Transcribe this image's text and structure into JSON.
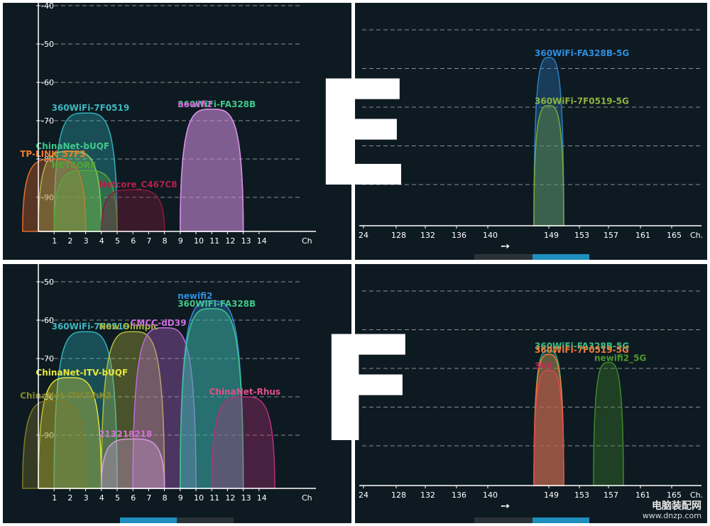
{
  "letters": {
    "top": "E",
    "bottom": "F"
  },
  "watermark": {
    "line1": "电脑装配网",
    "line2": "www.dnzp.com"
  },
  "colors": {
    "bg": "#0e1a21",
    "axis": "#ffffff",
    "grid": "#8a8f92",
    "text": "#ffffff"
  },
  "chart_data": [
    {
      "id": "E-2.4G",
      "type": "area",
      "x_unit_label": "Ch",
      "x_ticks": [
        "1",
        "2",
        "3",
        "4",
        "5",
        "6",
        "7",
        "8",
        "9",
        "10",
        "11",
        "12",
        "13",
        "14"
      ],
      "y_ticks": [
        "-40",
        "-50",
        "-60",
        "-70",
        "-80",
        "-90"
      ],
      "ylim": [
        -100,
        -40
      ],
      "grid": true,
      "series": [
        {
          "name": "360WiFi-7F0519",
          "center": 3,
          "value": -68,
          "color": "#2fb3bd",
          "label_color": "#3fb7c0"
        },
        {
          "name": "ChinaNet-bUQF",
          "center": 2,
          "value": -78,
          "color": "#8fd06b",
          "label_color": "#3ec98b"
        },
        {
          "name": "TP-LINK_57F3",
          "center": 1,
          "value": -80,
          "color": "#e46a2b",
          "label_color": "#f07a2d"
        },
        {
          "name": "NETCORE",
          "center": 3,
          "value": -83,
          "color": "#58a83a",
          "label_color": "#4fa532"
        },
        {
          "name": "Netcore_C467C8",
          "center": 6,
          "value": -88,
          "color": "#8a1b3b",
          "label_color": "#b4204c"
        },
        {
          "name": "360WiFi-FA328B",
          "center": 11,
          "value": -67,
          "color": "#d48fe2",
          "label_color": "#3ec98b"
        },
        {
          "name": "newifi2",
          "center": 11,
          "value": -67,
          "color": "#d48fe2",
          "label_color": "#d35fd3"
        }
      ]
    },
    {
      "id": "E-5G",
      "type": "area",
      "x_unit_label": "Ch.",
      "x_ticks": [
        "24",
        "128",
        "132",
        "136",
        "140",
        "149",
        "153",
        "157",
        "161",
        "165"
      ],
      "grid": true,
      "series": [
        {
          "name": "360WiFi-FA328B-5G",
          "center": 149,
          "value": -58,
          "color": "#2a7fc4",
          "label_color": "#2f8ee0"
        },
        {
          "name": "360WiFi-7F0519-5G",
          "center": 149,
          "value": -70,
          "color": "#7aa53a",
          "label_color": "#8fb43e"
        }
      ]
    },
    {
      "id": "F-2.4G",
      "type": "area",
      "x_unit_label": "Ch",
      "x_ticks": [
        "1",
        "2",
        "3",
        "4",
        "5",
        "6",
        "7",
        "8",
        "9",
        "10",
        "11",
        "12",
        "13",
        "14"
      ],
      "y_ticks": [
        "-50",
        "-60",
        "-70",
        "-80",
        "-90"
      ],
      "ylim": [
        -100,
        -40
      ],
      "grid": true,
      "series": [
        {
          "name": "360WiFi-7F0519",
          "center": 3,
          "value": -63,
          "color": "#2fb3bd",
          "label_color": "#3fb7c0"
        },
        {
          "name": "New Olimpic",
          "center": 6,
          "value": -63,
          "color": "#b7bd3b",
          "label_color": "#a6b23b"
        },
        {
          "name": "CMCC-dD39",
          "center": 8,
          "value": -62,
          "color": "#c06adb",
          "label_color": "#cf6fe0"
        },
        {
          "name": "newifi2",
          "center": 11,
          "value": -55,
          "color": "#3a86d6",
          "label_color": "#2f8ee0"
        },
        {
          "name": "360WiFi-FA328B",
          "center": 11,
          "value": -57,
          "color": "#3ec98b",
          "label_color": "#3ec98b"
        },
        {
          "name": "ChinaNet-ITV-bUQF",
          "center": 2,
          "value": -75,
          "color": "#e0e23a",
          "label_color": "#e6e83a"
        },
        {
          "name": "ChinaNet-ITV-T-hK3",
          "center": 1,
          "value": -81,
          "color": "#7d7a2a",
          "label_color": "#8a8a2a"
        },
        {
          "name": "ChinaNet-Rhus",
          "center": 13,
          "value": -80,
          "color": "#b5307a",
          "label_color": "#e0508a"
        },
        {
          "name": "213218218",
          "center": 6,
          "value": -91,
          "color": "#d49be0",
          "label_color": "#d56fd8"
        }
      ]
    },
    {
      "id": "F-5G",
      "type": "area",
      "x_unit_label": "Ch.",
      "x_ticks": [
        "24",
        "128",
        "132",
        "136",
        "140",
        "149",
        "153",
        "157",
        "161",
        "165"
      ],
      "grid": true,
      "series": [
        {
          "name": "360WiFi-FA328B-5G",
          "center": 149,
          "value": -66,
          "color": "#2fa67a",
          "label_color": "#3bbf85"
        },
        {
          "name": "360WiFi-7F0519-5G",
          "center": 149,
          "value": -67,
          "color": "#f07a3a",
          "label_color": "#f07a3a"
        },
        {
          "name": "360",
          "center": 149,
          "value": -71,
          "color": "#e3454a",
          "label_color": "#c22b5a"
        },
        {
          "name": "newifi2_5G",
          "center": 157,
          "value": -69,
          "color": "#3f8a2a",
          "label_color": "#4c9a2f"
        }
      ]
    }
  ]
}
